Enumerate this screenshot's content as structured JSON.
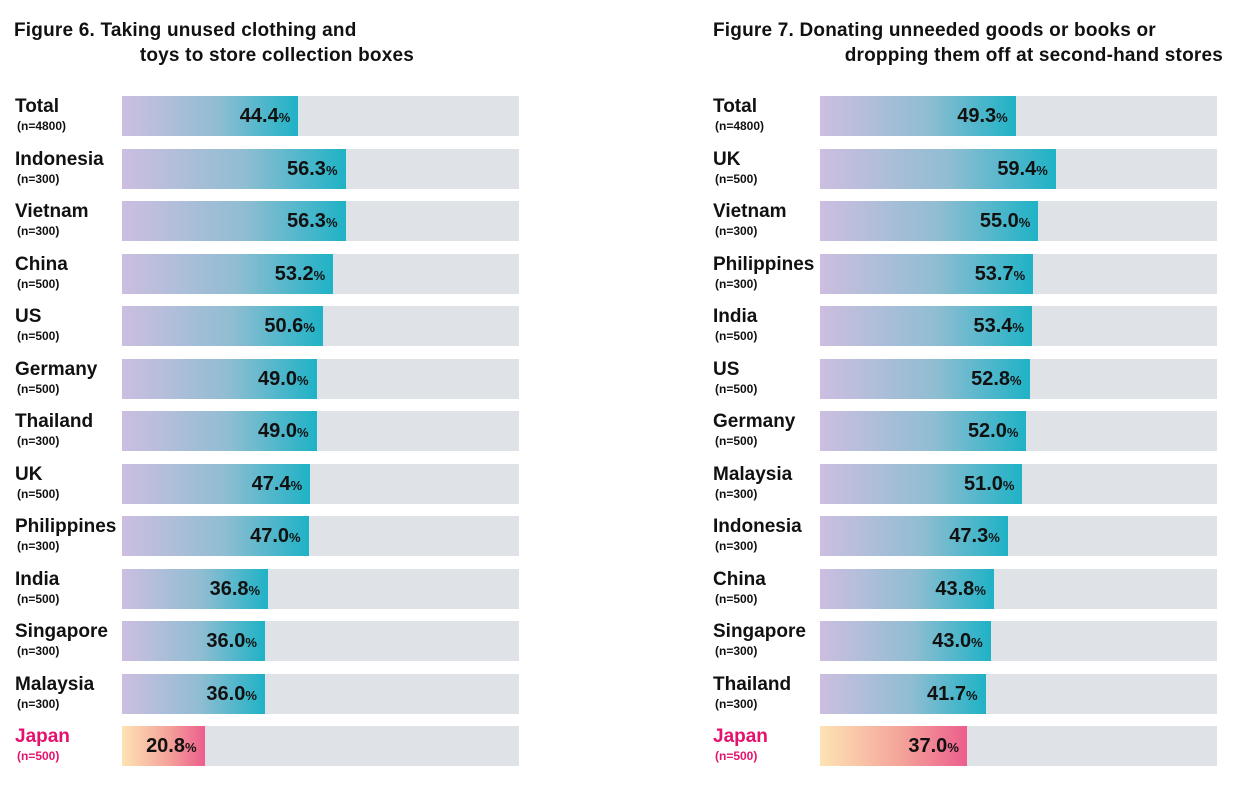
{
  "chart_data": [
    {
      "type": "bar",
      "orientation": "horizontal",
      "title_line1": "Figure 6. Taking unused clothing and",
      "title_line2": "toys to store collection boxes",
      "unit": "%",
      "xlim": [
        0,
        100
      ],
      "highlight_color": "#e4126d",
      "bar_color_end": "#1fb2c6",
      "categories": [
        {
          "name": "Total",
          "n": "(n=4800)",
          "value": 44.4,
          "label": "44.4",
          "highlight": false
        },
        {
          "name": "Indonesia",
          "n": "(n=300)",
          "value": 56.3,
          "label": "56.3",
          "highlight": false
        },
        {
          "name": "Vietnam",
          "n": "(n=300)",
          "value": 56.3,
          "label": "56.3",
          "highlight": false
        },
        {
          "name": "China",
          "n": "(n=500)",
          "value": 53.2,
          "label": "53.2",
          "highlight": false
        },
        {
          "name": "US",
          "n": "(n=500)",
          "value": 50.6,
          "label": "50.6",
          "highlight": false
        },
        {
          "name": "Germany",
          "n": "(n=500)",
          "value": 49.0,
          "label": "49.0",
          "highlight": false
        },
        {
          "name": "Thailand",
          "n": "(n=300)",
          "value": 49.0,
          "label": "49.0",
          "highlight": false
        },
        {
          "name": "UK",
          "n": "(n=500)",
          "value": 47.4,
          "label": "47.4",
          "highlight": false
        },
        {
          "name": "Philippines",
          "n": "(n=300)",
          "value": 47.0,
          "label": "47.0",
          "highlight": false
        },
        {
          "name": "India",
          "n": "(n=500)",
          "value": 36.8,
          "label": "36.8",
          "highlight": false
        },
        {
          "name": "Singapore",
          "n": "(n=300)",
          "value": 36.0,
          "label": "36.0",
          "highlight": false
        },
        {
          "name": "Malaysia",
          "n": "(n=300)",
          "value": 36.0,
          "label": "36.0",
          "highlight": false
        },
        {
          "name": "Japan",
          "n": "(n=500)",
          "value": 20.8,
          "label": "20.8",
          "highlight": true
        }
      ]
    },
    {
      "type": "bar",
      "orientation": "horizontal",
      "title_line1": "Figure 7. Donating unneeded goods or books or",
      "title_line2": "dropping them off at second-hand stores",
      "unit": "%",
      "xlim": [
        0,
        100
      ],
      "highlight_color": "#e4126d",
      "bar_color_end": "#1fb2c6",
      "categories": [
        {
          "name": "Total",
          "n": "(n=4800)",
          "value": 49.3,
          "label": "49.3",
          "highlight": false
        },
        {
          "name": "UK",
          "n": "(n=500)",
          "value": 59.4,
          "label": "59.4",
          "highlight": false
        },
        {
          "name": "Vietnam",
          "n": "(n=300)",
          "value": 55.0,
          "label": "55.0",
          "highlight": false
        },
        {
          "name": "Philippines",
          "n": "(n=300)",
          "value": 53.7,
          "label": "53.7",
          "highlight": false
        },
        {
          "name": "India",
          "n": "(n=500)",
          "value": 53.4,
          "label": "53.4",
          "highlight": false
        },
        {
          "name": "US",
          "n": "(n=500)",
          "value": 52.8,
          "label": "52.8",
          "highlight": false
        },
        {
          "name": "Germany",
          "n": "(n=500)",
          "value": 52.0,
          "label": "52.0",
          "highlight": false
        },
        {
          "name": "Malaysia",
          "n": "(n=300)",
          "value": 51.0,
          "label": "51.0",
          "highlight": false
        },
        {
          "name": "Indonesia",
          "n": "(n=300)",
          "value": 47.3,
          "label": "47.3",
          "highlight": false
        },
        {
          "name": "China",
          "n": "(n=500)",
          "value": 43.8,
          "label": "43.8",
          "highlight": false
        },
        {
          "name": "Singapore",
          "n": "(n=300)",
          "value": 43.0,
          "label": "43.0",
          "highlight": false
        },
        {
          "name": "Thailand",
          "n": "(n=300)",
          "value": 41.7,
          "label": "41.7",
          "highlight": false
        },
        {
          "name": "Japan",
          "n": "(n=500)",
          "value": 37.0,
          "label": "37.0",
          "highlight": true
        }
      ]
    }
  ]
}
